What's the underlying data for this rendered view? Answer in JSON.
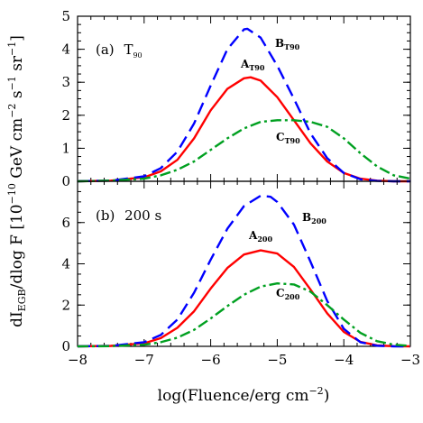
{
  "chart_data": {
    "type": "line",
    "xlabel": "log(Fluence/erg cm",
    "xlabel_sup": "−2",
    "xlabel_end": ")",
    "ylabel_parts": {
      "a": "dI",
      "sub": "EGB",
      "b": "/dlog F  [10",
      "sup1": "−10",
      "c": " GeV cm",
      "sup2": "−2",
      "d": " s",
      "sup3": "−1",
      "e": " sr",
      "sup4": "−1",
      "f": "]"
    },
    "xlim": [
      -8,
      -3
    ],
    "xticks": [
      -8,
      -7,
      -6,
      -5,
      -4,
      -3
    ],
    "xtick_labels": [
      "−8",
      "−7",
      "−6",
      "−5",
      "−4",
      "−3"
    ],
    "panels": [
      {
        "label": "(a)",
        "label_name": "T",
        "label_sub": "90",
        "ylim": [
          0,
          5
        ],
        "yticks": [
          0,
          1,
          2,
          3,
          4,
          5
        ],
        "ytick_labels": [
          "0",
          "1",
          "2",
          "3",
          "4",
          "5"
        ],
        "series": [
          {
            "name": "A",
            "name_sub": "T90",
            "color": "#ff0000",
            "dash": "solid",
            "x": [
              -8.0,
              -7.5,
              -7.0,
              -6.75,
              -6.5,
              -6.25,
              -6.0,
              -5.75,
              -5.5,
              -5.4,
              -5.25,
              -5.0,
              -4.75,
              -4.5,
              -4.25,
              -4.0,
              -3.75,
              -3.5,
              -3.25,
              -3.0
            ],
            "y": [
              0.0,
              0.02,
              0.12,
              0.3,
              0.65,
              1.3,
              2.15,
              2.8,
              3.12,
              3.15,
              3.05,
              2.55,
              1.85,
              1.15,
              0.6,
              0.25,
              0.08,
              0.02,
              0.0,
              0.0
            ]
          },
          {
            "name": "B",
            "name_sub": "T90",
            "color": "#0000ff",
            "dash": "dashed",
            "x": [
              -8.0,
              -7.5,
              -7.0,
              -6.75,
              -6.5,
              -6.25,
              -6.0,
              -5.75,
              -5.5,
              -5.45,
              -5.25,
              -5.0,
              -4.75,
              -4.5,
              -4.25,
              -4.0,
              -3.75,
              -3.5,
              -3.25,
              -3.0
            ],
            "y": [
              0.0,
              0.02,
              0.15,
              0.4,
              0.9,
              1.75,
              2.9,
              4.0,
              4.6,
              4.62,
              4.35,
              3.5,
              2.5,
              1.45,
              0.7,
              0.25,
              0.06,
              0.01,
              0.0,
              0.0
            ]
          },
          {
            "name": "C",
            "name_sub": "T90",
            "color": "#00a020",
            "dash": "dashdot",
            "x": [
              -8.0,
              -7.5,
              -7.0,
              -6.75,
              -6.5,
              -6.25,
              -6.0,
              -5.75,
              -5.5,
              -5.25,
              -5.0,
              -4.75,
              -4.5,
              -4.25,
              -4.0,
              -3.75,
              -3.5,
              -3.25,
              -3.0
            ],
            "y": [
              0.0,
              0.02,
              0.08,
              0.18,
              0.35,
              0.6,
              0.95,
              1.3,
              1.6,
              1.8,
              1.85,
              1.85,
              1.8,
              1.65,
              1.3,
              0.85,
              0.45,
              0.18,
              0.08
            ]
          }
        ]
      },
      {
        "label": "(b)",
        "label_name": "200 s",
        "label_sub": "",
        "ylim": [
          0,
          8
        ],
        "yticks": [
          0,
          2,
          4,
          6
        ],
        "ytick_labels": [
          "0",
          "2",
          "4",
          "6"
        ],
        "series": [
          {
            "name": "A",
            "name_sub": "200",
            "color": "#ff0000",
            "dash": "solid",
            "x": [
              -8.0,
              -7.5,
              -7.0,
              -6.75,
              -6.5,
              -6.25,
              -6.0,
              -5.75,
              -5.5,
              -5.25,
              -5.0,
              -4.75,
              -4.5,
              -4.25,
              -4.0,
              -3.75,
              -3.5,
              -3.25,
              -3.0
            ],
            "y": [
              0.0,
              0.02,
              0.15,
              0.4,
              0.9,
              1.7,
              2.8,
              3.8,
              4.45,
              4.65,
              4.5,
              3.85,
              2.75,
              1.6,
              0.7,
              0.22,
              0.05,
              0.01,
              0.0
            ]
          },
          {
            "name": "B",
            "name_sub": "200",
            "color": "#0000ff",
            "dash": "dashed",
            "x": [
              -8.0,
              -7.5,
              -7.0,
              -6.75,
              -6.5,
              -6.25,
              -6.0,
              -5.75,
              -5.5,
              -5.25,
              -5.1,
              -5.0,
              -4.75,
              -4.5,
              -4.25,
              -4.0,
              -3.75,
              -3.5,
              -3.25,
              -3.0
            ],
            "y": [
              0.0,
              0.02,
              0.2,
              0.55,
              1.3,
              2.6,
              4.2,
              5.7,
              6.8,
              7.3,
              7.25,
              7.0,
              5.9,
              4.1,
              2.2,
              0.85,
              0.2,
              0.03,
              0.0,
              0.0
            ]
          },
          {
            "name": "C",
            "name_sub": "200",
            "color": "#00a020",
            "dash": "dashdot",
            "x": [
              -8.0,
              -7.5,
              -7.0,
              -6.75,
              -6.5,
              -6.25,
              -6.0,
              -5.75,
              -5.5,
              -5.25,
              -5.0,
              -4.75,
              -4.5,
              -4.25,
              -4.0,
              -3.75,
              -3.5,
              -3.25,
              -3.0
            ],
            "y": [
              0.0,
              0.01,
              0.08,
              0.2,
              0.42,
              0.8,
              1.35,
              1.95,
              2.5,
              2.9,
              3.05,
              3.0,
              2.65,
              2.0,
              1.3,
              0.65,
              0.25,
              0.08,
              0.02
            ]
          }
        ]
      }
    ],
    "grid": false,
    "legend": "inline labels"
  }
}
